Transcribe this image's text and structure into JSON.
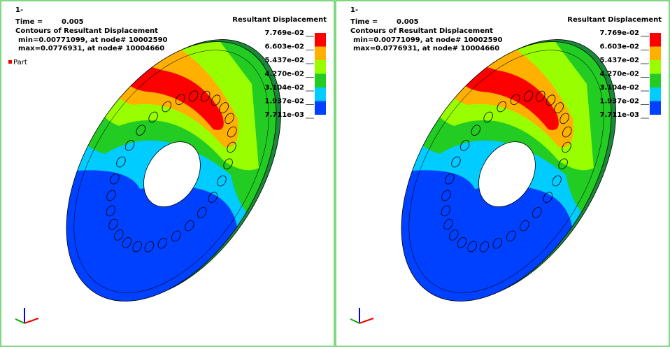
{
  "panels": [
    {
      "state": "1-",
      "time_label": "Time =",
      "time_value": "0.005",
      "contour_title": "Contours of Resultant Displacement",
      "min_line": "min=0.00771099, at node# 10002590",
      "max_line": "max=0.0776931, at node# 10004660",
      "part_label": "Part",
      "legend": {
        "title": "Resultant Displacement",
        "labels": [
          "7.769e-02",
          "6.603e-02",
          "5.437e-02",
          "4.270e-02",
          "3.104e-02",
          "1.937e-02",
          "7.711e-03"
        ]
      }
    },
    {
      "state": "1-",
      "time_label": "Time =",
      "time_value": "0.005",
      "contour_title": "Contours of Resultant Displacement",
      "min_line": "min=0.00771099, at node# 10002590",
      "max_line": "max=0.0776931, at node# 10004660",
      "legend": {
        "title": "Resultant Displacement",
        "labels": [
          "7.769e-02",
          "6.603e-02",
          "5.437e-02",
          "4.270e-02",
          "3.104e-02",
          "1.937e-02",
          "7.711e-03"
        ]
      }
    }
  ]
}
